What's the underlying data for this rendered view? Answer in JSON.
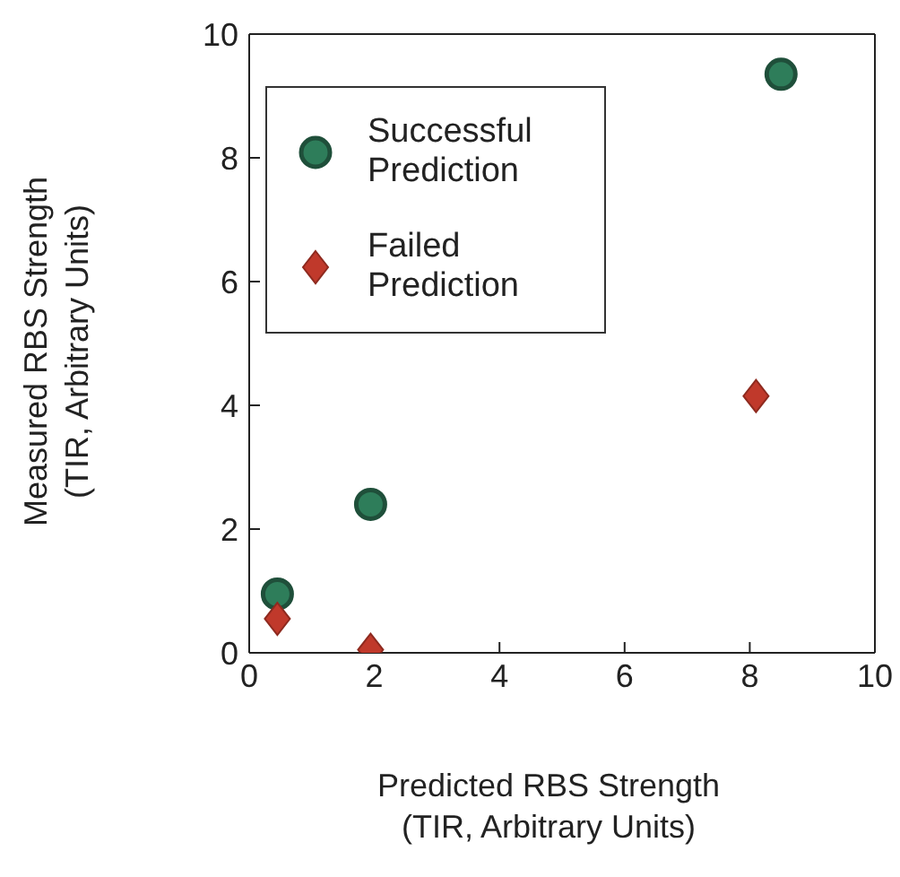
{
  "chart_data": {
    "type": "scatter",
    "xlabel": "Predicted RBS Strength\n(TIR, Arbitrary Units)",
    "ylabel": "Measured RBS Strength\n(TIR, Arbitrary Units)",
    "xlim": [
      0,
      10
    ],
    "ylim": [
      0,
      10
    ],
    "xticks": [
      0,
      2,
      4,
      6,
      8,
      10
    ],
    "yticks": [
      0,
      2,
      4,
      6,
      8,
      10
    ],
    "legend": "top left",
    "series": [
      {
        "name": "Successful Prediction",
        "color": "#2e7d5a",
        "marker": "circle",
        "x": [
          0.45,
          1.94,
          8.5
        ],
        "values": [
          0.95,
          2.4,
          9.35
        ]
      },
      {
        "name": "Failed Prediction",
        "color": "#c0392b",
        "marker": "diamond",
        "x": [
          0.45,
          1.94,
          8.1
        ],
        "values": [
          0.55,
          0.05,
          4.15
        ]
      }
    ]
  }
}
